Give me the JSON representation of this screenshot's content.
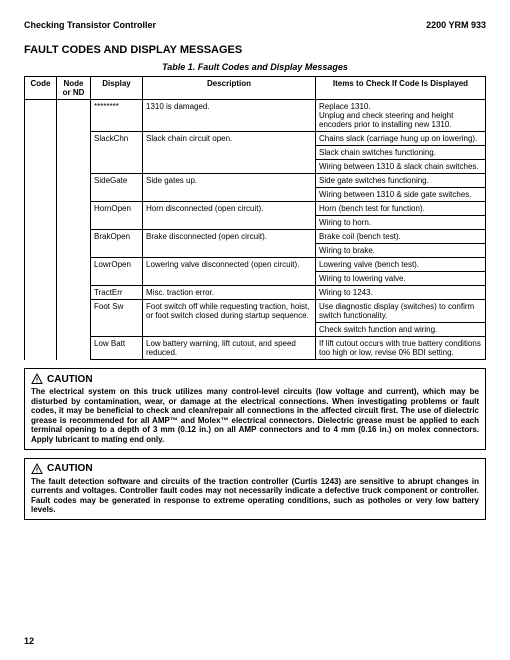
{
  "header": {
    "left": "Checking Transistor Controller",
    "right": "2200 YRM 933"
  },
  "section_title": "FAULT CODES AND DISPLAY MESSAGES",
  "table": {
    "caption": "Table 1.  Fault Codes and Display Messages",
    "columns": [
      "Code",
      "Node or ND",
      "Display",
      "Description",
      "Items to Check If Code Is Displayed"
    ],
    "rows": [
      {
        "display": "********",
        "desc": "1310 is damaged.",
        "items": [
          "Replace 1310.\nUnplug and check steering and height encoders prior to installing new 1310."
        ]
      },
      {
        "display": "SlackChn",
        "desc": "Slack chain circuit open.",
        "items": [
          "Chains slack (carriage hung up on lowering).",
          "Slack chain switches functioning.",
          "Wiring between 1310 & slack chain switches."
        ]
      },
      {
        "display": "SideGate",
        "desc": "Side gates up.",
        "items": [
          "Side gate switches functioning.",
          "Wiring between 1310 & side gate switches."
        ]
      },
      {
        "display": "HornOpen",
        "desc": "Horn disconnected (open circuit).",
        "items": [
          "Horn (bench test for function).",
          "Wiring to horn."
        ]
      },
      {
        "display": "BrakOpen",
        "desc": "Brake disconnected (open circuit).",
        "items": [
          "Brake coil (bench test).",
          "Wiring to brake."
        ]
      },
      {
        "display": "LowrOpen",
        "desc": "Lowering valve disconnected (open circuit).",
        "items": [
          "Lowering valve (bench test).",
          "Wiring to lowering valve."
        ]
      },
      {
        "display": "TractErr",
        "desc": "Misc.  traction error.",
        "items": [
          "Wiring to 1243."
        ]
      },
      {
        "display": "Foot Sw",
        "desc": "Foot switch off while requesting traction, hoist, or foot switch closed during startup sequence.",
        "items": [
          "Use diagnostic display (switches) to confirm switch functionality.",
          "Check switch function and wiring."
        ]
      },
      {
        "display": "Low Batt",
        "desc": "Low battery warning, lift cutout, and speed reduced.",
        "items": [
          "If lift cutout occurs with true battery conditions too high or low, revise 0% BDI setting."
        ]
      }
    ]
  },
  "caution1": "The electrical system on this truck utilizes many control-level circuits (low voltage and current), which may be disturbed by contamination, wear, or damage at the electrical connections.  When investigating problems or fault codes, it may be beneficial to check and clean/repair all connections in the affected circuit first.  The use of dielectric grease is recommended for all AMP™ and Molex™ electrical connectors.  Dielectric grease must be applied to each terminal opening to a depth of 3 mm (0.12 in.) on all AMP connectors and to 4 mm (0.16 in.) on molex connectors.  Apply lubricant to mating end only.",
  "caution2": "The fault detection software and circuits of the traction controller (Curtis 1243) are sensitive to abrupt changes in currents and voltages.  Controller fault codes may not necessarily indicate a defective truck component or controller.  Fault codes may be generated in response to extreme operating conditions, such as potholes or very low battery levels.",
  "caution_label": "CAUTION",
  "page_number": "12"
}
